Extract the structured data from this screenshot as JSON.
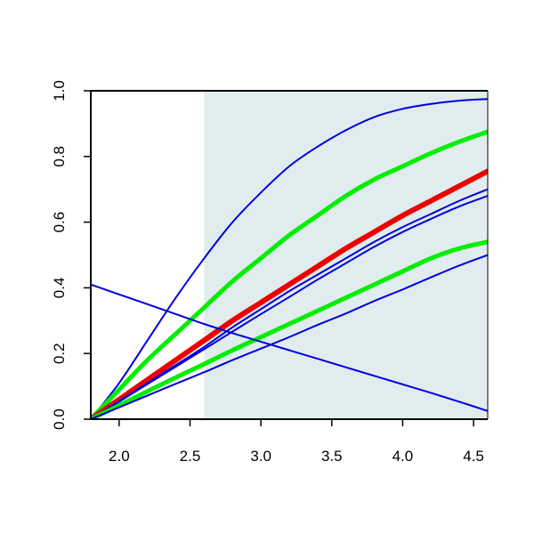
{
  "chart_data": {
    "type": "line",
    "title": "",
    "xlabel": "",
    "ylabel": "",
    "xlim": [
      1.8,
      4.6
    ],
    "ylim": [
      0.0,
      1.0
    ],
    "grid": false,
    "legend": "none",
    "x_ticks": [
      2.0,
      2.5,
      3.0,
      3.5,
      4.0,
      4.5
    ],
    "x_tick_labels": [
      "2.0",
      "2.5",
      "3.0",
      "3.5",
      "4.0",
      "4.5"
    ],
    "y_ticks": [
      0.0,
      0.2,
      0.4,
      0.6,
      0.8,
      1.0
    ],
    "y_tick_labels": [
      "0.0",
      "0.2",
      "0.4",
      "0.6",
      "0.8",
      "1.0"
    ],
    "shaded_region": {
      "x": [
        2.6,
        4.6
      ],
      "y": [
        0.0,
        1.0
      ],
      "color": "#e0eced"
    },
    "x": [
      1.8,
      2.0,
      2.2,
      2.4,
      2.6,
      2.8,
      3.0,
      3.2,
      3.4,
      3.6,
      3.8,
      4.0,
      4.2,
      4.4,
      4.6
    ],
    "series": [
      {
        "color": "#0000dd",
        "width": 2,
        "values": [
          0.0,
          0.11,
          0.24,
          0.37,
          0.49,
          0.6,
          0.69,
          0.77,
          0.83,
          0.88,
          0.92,
          0.945,
          0.96,
          0.97,
          0.975
        ]
      },
      {
        "color": "#00ee00",
        "width": 5,
        "values": [
          0.0,
          0.09,
          0.18,
          0.26,
          0.34,
          0.42,
          0.49,
          0.56,
          0.62,
          0.68,
          0.73,
          0.77,
          0.81,
          0.845,
          0.875
        ]
      },
      {
        "color": "#ee0000",
        "width": 6,
        "values": [
          0.0,
          0.06,
          0.12,
          0.18,
          0.24,
          0.3,
          0.355,
          0.41,
          0.465,
          0.52,
          0.57,
          0.62,
          0.665,
          0.71,
          0.755
        ]
      },
      {
        "color": "#0000dd",
        "width": 2,
        "values": [
          0.0,
          0.055,
          0.11,
          0.165,
          0.22,
          0.28,
          0.335,
          0.39,
          0.44,
          0.49,
          0.54,
          0.585,
          0.625,
          0.665,
          0.7
        ]
      },
      {
        "color": "#0000dd",
        "width": 2,
        "values": [
          0.0,
          0.053,
          0.107,
          0.16,
          0.213,
          0.267,
          0.32,
          0.372,
          0.425,
          0.475,
          0.525,
          0.57,
          0.61,
          0.648,
          0.68
        ]
      },
      {
        "color": "#00ee00",
        "width": 5,
        "values": [
          0.0,
          0.042,
          0.085,
          0.127,
          0.168,
          0.21,
          0.25,
          0.29,
          0.33,
          0.37,
          0.41,
          0.45,
          0.49,
          0.52,
          0.54
        ]
      },
      {
        "color": "#0000dd",
        "width": 2,
        "values": [
          0.0,
          0.036,
          0.072,
          0.108,
          0.143,
          0.18,
          0.215,
          0.25,
          0.287,
          0.322,
          0.36,
          0.395,
          0.432,
          0.468,
          0.5
        ]
      },
      {
        "color": "#0000dd",
        "width": 2,
        "values": [
          0.41,
          0.38,
          0.35,
          0.32,
          0.29,
          0.262,
          0.236,
          0.21,
          0.184,
          0.158,
          0.132,
          0.106,
          0.08,
          0.053,
          0.025
        ]
      }
    ]
  }
}
